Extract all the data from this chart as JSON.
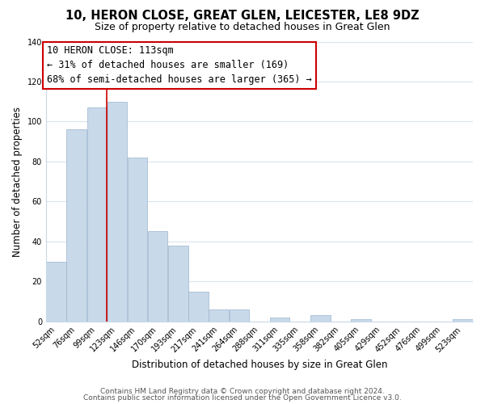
{
  "title": "10, HERON CLOSE, GREAT GLEN, LEICESTER, LE8 9DZ",
  "subtitle": "Size of property relative to detached houses in Great Glen",
  "xlabel": "Distribution of detached houses by size in Great Glen",
  "ylabel": "Number of detached properties",
  "bar_color": "#c8d9ea",
  "bar_edge_color": "#9ab4cc",
  "categories": [
    "52sqm",
    "76sqm",
    "99sqm",
    "123sqm",
    "146sqm",
    "170sqm",
    "193sqm",
    "217sqm",
    "241sqm",
    "264sqm",
    "288sqm",
    "311sqm",
    "335sqm",
    "358sqm",
    "382sqm",
    "405sqm",
    "429sqm",
    "452sqm",
    "476sqm",
    "499sqm",
    "523sqm"
  ],
  "values": [
    30,
    96,
    107,
    110,
    82,
    45,
    38,
    15,
    6,
    6,
    0,
    2,
    0,
    3,
    0,
    1,
    0,
    0,
    0,
    0,
    1
  ],
  "ylim": [
    0,
    140
  ],
  "yticks": [
    0,
    20,
    40,
    60,
    80,
    100,
    120,
    140
  ],
  "ref_line_index": 3,
  "annotation_title": "10 HERON CLOSE: 113sqm",
  "annotation_line1": "← 31% of detached houses are smaller (169)",
  "annotation_line2": "68% of semi-detached houses are larger (365) →",
  "annotation_box_color": "#ffffff",
  "annotation_box_edge_color": "#cc0000",
  "ref_line_color": "#cc0000",
  "footer1": "Contains HM Land Registry data © Crown copyright and database right 2024.",
  "footer2": "Contains public sector information licensed under the Open Government Licence v3.0.",
  "bg_color": "#ffffff",
  "grid_color": "#d8e4f0",
  "title_fontsize": 10.5,
  "subtitle_fontsize": 9,
  "axis_label_fontsize": 8.5,
  "tick_fontsize": 7,
  "footer_fontsize": 6.5,
  "annotation_fontsize": 8.5
}
